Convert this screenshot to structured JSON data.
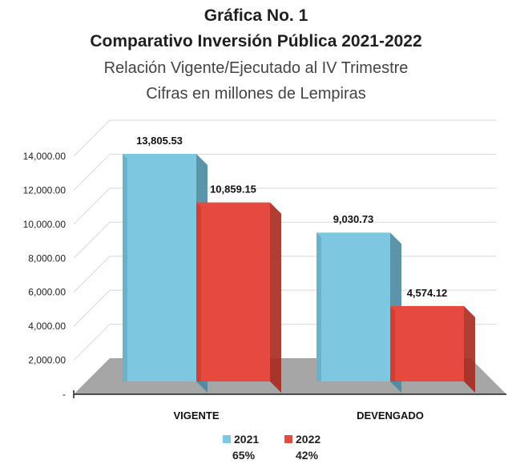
{
  "title_line1": "Gráfica No. 1",
  "title_line2": "Comparativo Inversión Pública 2021-2022",
  "subtitle_line1": "Relación Vigente/Ejecutado al IV Trimestre",
  "subtitle_line2": "Cifras en millones de Lempiras",
  "legend": [
    {
      "name": "2021",
      "percent": "65%",
      "color": "#7dc7e0"
    },
    {
      "name": "2022",
      "percent": "42%",
      "color": "#e64a3e"
    }
  ],
  "chart_data": {
    "type": "bar",
    "categories": [
      "VIGENTE",
      "DEVENGADO"
    ],
    "series": [
      {
        "name": "2021",
        "values": [
          13805.53,
          9030.73
        ],
        "labels": [
          "13,805.53",
          "9,030.73"
        ]
      },
      {
        "name": "2022",
        "values": [
          10859.15,
          4574.12
        ],
        "labels": [
          "10,859.15",
          "4,574.12"
        ]
      }
    ],
    "ylim": [
      0,
      14000
    ],
    "yticks": [
      0,
      2000,
      4000,
      6000,
      8000,
      10000,
      12000,
      14000
    ],
    "ytick_labels": [
      "-",
      "2,000.00",
      "4,000.00",
      "6,000.00",
      "8,000.00",
      "10,000.00",
      "12,000.00",
      "14,000.00"
    ],
    "grid": true,
    "three_d": true,
    "legend_position": "bottom"
  }
}
